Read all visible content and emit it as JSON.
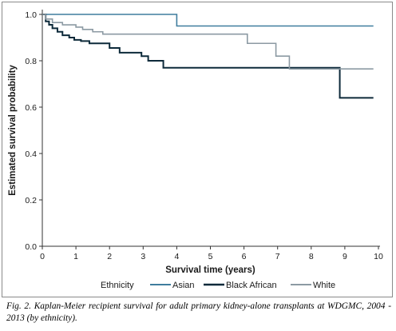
{
  "chart_data": {
    "type": "line",
    "xlabel": "Survival time (years)",
    "ylabel": "Estimated survival probability",
    "xlim": [
      0,
      10
    ],
    "ylim": [
      0,
      1.0
    ],
    "x_ticks": [
      "0",
      "1",
      "2",
      "3",
      "4",
      "5",
      "6",
      "7",
      "8",
      "9",
      "10"
    ],
    "y_ticks": [
      "0.0",
      "0.2",
      "0.4",
      "0.6",
      "0.8",
      "1.0"
    ],
    "grid": false,
    "legend_title": "Ethnicity",
    "legend_position": "bottom",
    "series": [
      {
        "name": "Asian",
        "color": "#3f7d9e",
        "line_width": 1.6,
        "x": [
          0,
          4.0,
          4.0,
          9.85
        ],
        "y": [
          1.0,
          1.0,
          0.95,
          0.95
        ]
      },
      {
        "name": "Black African",
        "color": "#0d2a3a",
        "line_width": 2.0,
        "x": [
          0,
          0.1,
          0.1,
          0.2,
          0.2,
          0.3,
          0.3,
          0.45,
          0.45,
          0.6,
          0.6,
          0.8,
          0.8,
          0.95,
          0.95,
          1.15,
          1.15,
          1.4,
          1.4,
          2.0,
          2.0,
          2.3,
          2.3,
          2.95,
          2.95,
          3.15,
          3.15,
          3.6,
          3.6,
          8.85,
          8.85,
          9.85
        ],
        "y": [
          1.0,
          1.0,
          0.97,
          0.97,
          0.955,
          0.955,
          0.94,
          0.94,
          0.925,
          0.925,
          0.91,
          0.91,
          0.9,
          0.9,
          0.89,
          0.89,
          0.885,
          0.885,
          0.875,
          0.875,
          0.855,
          0.855,
          0.835,
          0.835,
          0.82,
          0.82,
          0.8,
          0.8,
          0.77,
          0.77,
          0.64,
          0.64
        ]
      },
      {
        "name": "White",
        "color": "#8c9aa3",
        "line_width": 1.6,
        "x": [
          0,
          0.1,
          0.1,
          0.3,
          0.3,
          0.6,
          0.6,
          1.0,
          1.0,
          1.2,
          1.2,
          1.5,
          1.5,
          1.8,
          1.8,
          6.1,
          6.1,
          6.95,
          6.95,
          7.35,
          7.35,
          9.85
        ],
        "y": [
          1.0,
          1.0,
          0.98,
          0.98,
          0.965,
          0.965,
          0.955,
          0.955,
          0.945,
          0.945,
          0.935,
          0.935,
          0.925,
          0.925,
          0.915,
          0.915,
          0.875,
          0.875,
          0.82,
          0.82,
          0.765,
          0.765
        ]
      }
    ]
  },
  "caption": "Fig. 2. Kaplan-Meier recipient survival for adult primary kidney-alone transplants at WDGMC, 2004 - 2013 (by ethnicity)."
}
